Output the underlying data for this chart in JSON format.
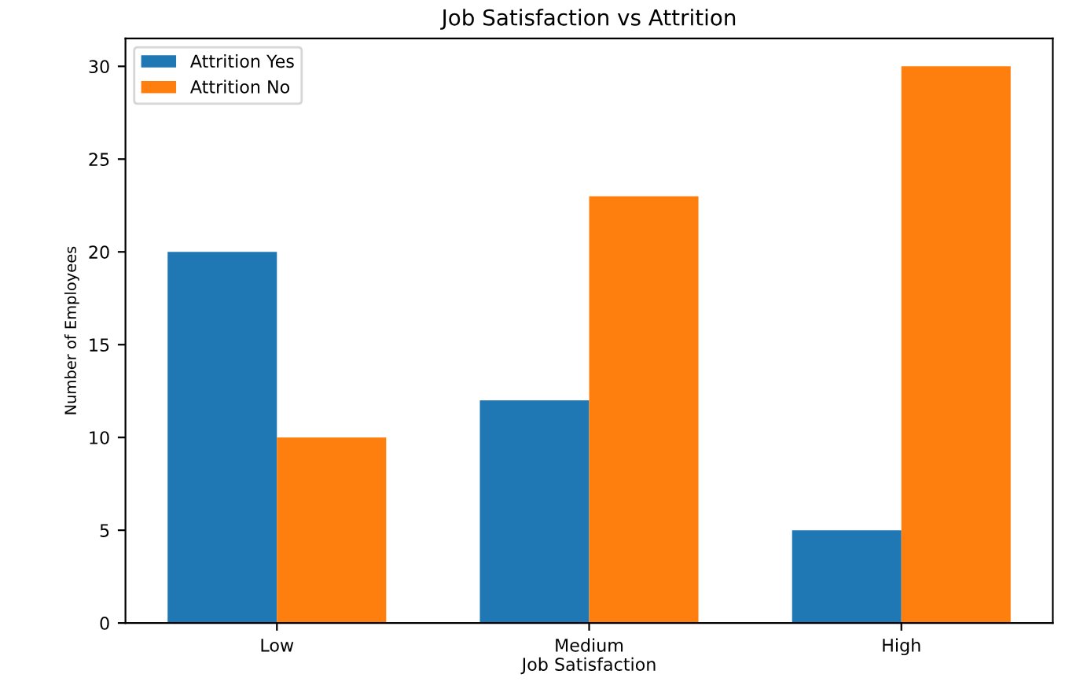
{
  "chart_data": {
    "type": "bar",
    "title": "Job Satisfaction vs Attrition",
    "xlabel": "Job Satisfaction",
    "ylabel": "Number of Employees",
    "categories": [
      "Low",
      "Medium",
      "High"
    ],
    "series": [
      {
        "name": "Attrition Yes",
        "color": "#1f77b4",
        "values": [
          20,
          12,
          5
        ]
      },
      {
        "name": "Attrition No",
        "color": "#ff7f0e",
        "values": [
          10,
          23,
          30
        ]
      }
    ],
    "ylim": [
      0,
      31.5
    ],
    "yticks": [
      0,
      5,
      10,
      15,
      20,
      25,
      30
    ],
    "grid": false,
    "legend": "top left"
  }
}
